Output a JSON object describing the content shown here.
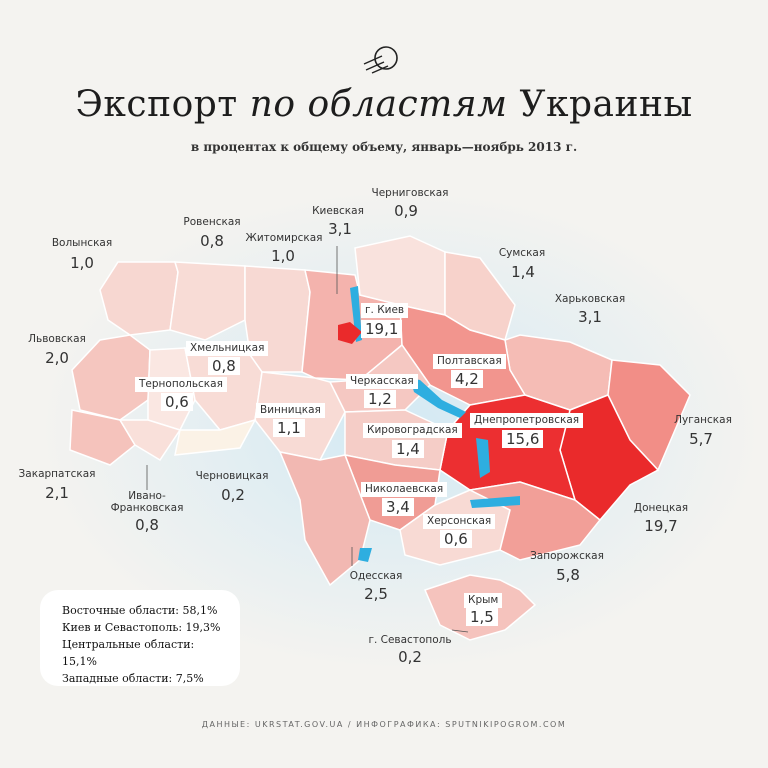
{
  "title_part1": "Экспорт",
  "title_part2": "по областям",
  "title_part3": "Украины",
  "subtitle": "в процентах к общему объему, январь—ноябрь 2013 г.",
  "regions": [
    {
      "name": "Черниговская",
      "value": "0,9"
    },
    {
      "name": "Киевская",
      "value": "3,1"
    },
    {
      "name": "Ровенская",
      "value": "0,8"
    },
    {
      "name": "Житомирская",
      "value": "1,0"
    },
    {
      "name": "Волынская",
      "value": "1,0"
    },
    {
      "name": "Сумская",
      "value": "1,4"
    },
    {
      "name": "г. Киев",
      "value": "19,1"
    },
    {
      "name": "Харьковская",
      "value": "3,1"
    },
    {
      "name": "Львовская",
      "value": "2,0"
    },
    {
      "name": "Хмельницкая",
      "value": "0,8"
    },
    {
      "name": "Полтавская",
      "value": "4,2"
    },
    {
      "name": "Тернопольская",
      "value": "0,6"
    },
    {
      "name": "Черкасская",
      "value": "1,2"
    },
    {
      "name": "Винницкая",
      "value": "1,1"
    },
    {
      "name": "Днепропетровская",
      "value": "15,6"
    },
    {
      "name": "Луганская",
      "value": "5,7"
    },
    {
      "name": "Кировоградская",
      "value": "1,4"
    },
    {
      "name": "Закарпатская",
      "value": "2,1"
    },
    {
      "name": "Черновицкая",
      "value": "0,2"
    },
    {
      "name": "Ивано-Франковская",
      "value": "0,8"
    },
    {
      "name": "Николаевская",
      "value": "3,4"
    },
    {
      "name": "Донецкая",
      "value": "19,7"
    },
    {
      "name": "Херсонская",
      "value": "0,6"
    },
    {
      "name": "Запорожская",
      "value": "5,8"
    },
    {
      "name": "Одесская",
      "value": "2,5"
    },
    {
      "name": "Крым",
      "value": "1,5"
    },
    {
      "name": "г. Севастополь",
      "value": "0,2"
    }
  ],
  "ivano_line1": "Ивано-",
  "ivano_line2": "Франковская",
  "legend": [
    "Восточные области: 58,1%",
    "Киев и Севастополь: 19,3%",
    "Центральные области: 15,1%",
    "Западные области: 7,5%"
  ],
  "footer": "ДАННЫЕ: UKRSTAT.GOV.UA / ИНФОГРАФИКА: SPUTNIKIPOGROM.COM",
  "colors": {
    "background": "#f4f3f0",
    "low": "#f9e6e2",
    "mid": "#f3b3ad",
    "high": "#ee2a2c",
    "water": "#2eaee0"
  }
}
